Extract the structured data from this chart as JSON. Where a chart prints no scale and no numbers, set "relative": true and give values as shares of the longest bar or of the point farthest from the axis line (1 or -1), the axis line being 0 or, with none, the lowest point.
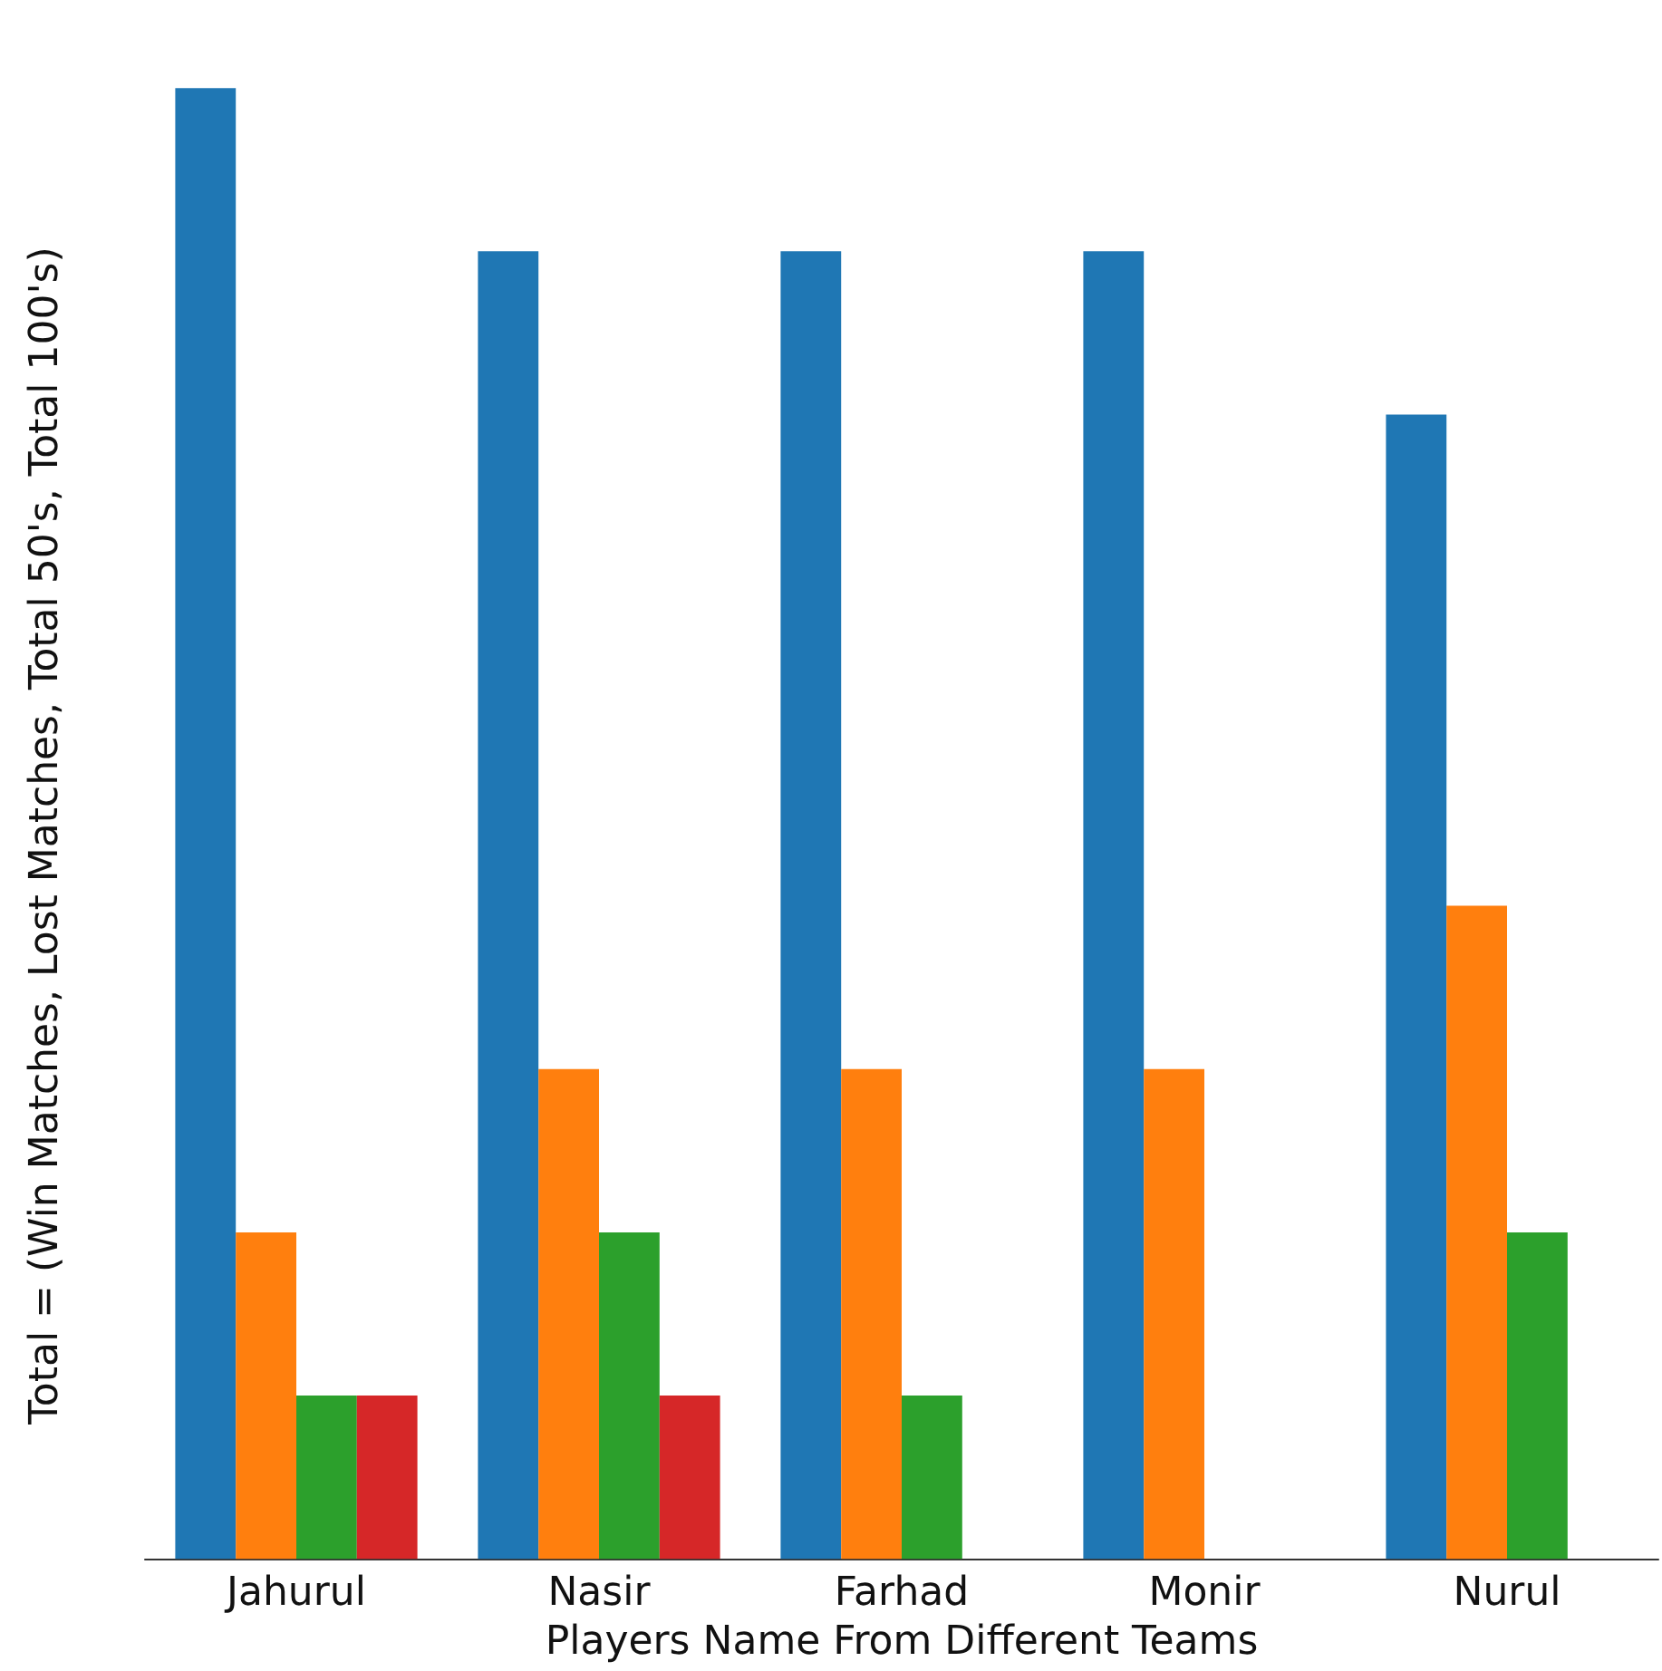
{
  "chart_data": {
    "type": "bar",
    "relative": true,
    "xlabel": "Players Name From Different Teams",
    "ylabel": "Total = (Win Matches, Lost Matches, Total 50's, Total 100's)",
    "categories": [
      "Jahurul",
      "Nasir",
      "Farhad",
      "Monir",
      "Nurul"
    ],
    "series": [
      {
        "color": "#1f77b4",
        "values": [
          1,
          0.889,
          0.889,
          0.889,
          0.778
        ]
      },
      {
        "color": "#ff7f0e",
        "values": [
          0.222,
          0.333,
          0.333,
          0.333,
          0.444
        ]
      },
      {
        "color": "#2ca02c",
        "values": [
          0.111,
          0.222,
          0.111,
          0,
          0.222
        ]
      },
      {
        "color": "#d62728",
        "values": [
          0.111,
          0.111,
          0,
          0,
          0
        ]
      }
    ]
  }
}
